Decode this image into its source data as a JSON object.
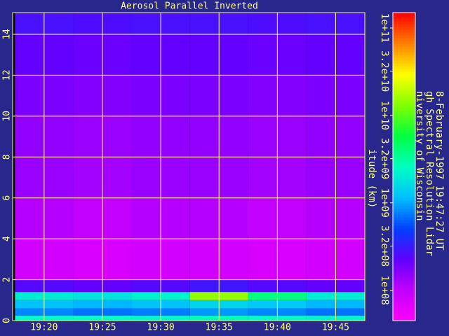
{
  "chart_data": {
    "type": "heatmap",
    "title": "Aerosol Parallel Inverted",
    "ylabel": "itude (km)",
    "annotations": [
      "niversity of Wisconsin",
      "gh Spectral Resolution Lidar",
      "8-February-1997 19:47:27 UT"
    ],
    "x_edges": [
      1157.5,
      1162.5,
      1167.5,
      1172.5,
      1177.5,
      1182.5,
      1187.5
    ],
    "y_edges": [
      0,
      0.25,
      0.6,
      1.0,
      1.4,
      2,
      4,
      6,
      8,
      10,
      12,
      14,
      15.06
    ],
    "values": [
      [
        2500000000.0,
        2600000000.0,
        2400000000.0,
        2800000000.0,
        2500000000.0,
        2300000000.0
      ],
      [
        800000000.0,
        700000000.0,
        750000000.0,
        900000000.0,
        800000000.0,
        700000000.0
      ],
      [
        1200000000.0,
        1100000000.0,
        1200000000.0,
        1500000000.0,
        1300000000.0,
        1100000000.0
      ],
      [
        2000000000.0,
        1800000000.0,
        2200000000.0,
        15000000000.0,
        4000000000.0,
        2000000000.0
      ],
      [
        250000000.0,
        220000000.0,
        250000000.0,
        300000000.0,
        250000000.0,
        220000000.0
      ],
      [
        80000000.0,
        75000000.0,
        80000000.0,
        80000000.0,
        75000000.0,
        80000000.0
      ],
      [
        110000000.0,
        100000000.0,
        110000000.0,
        110000000.0,
        100000000.0,
        110000000.0
      ],
      [
        140000000.0,
        130000000.0,
        140000000.0,
        140000000.0,
        130000000.0,
        140000000.0
      ],
      [
        150000000.0,
        140000000.0,
        150000000.0,
        150000000.0,
        140000000.0,
        150000000.0
      ],
      [
        180000000.0,
        170000000.0,
        180000000.0,
        180000000.0,
        170000000.0,
        180000000.0
      ],
      [
        220000000.0,
        210000000.0,
        220000000.0,
        220000000.0,
        210000000.0,
        220000000.0
      ],
      [
        280000000.0,
        270000000.0,
        280000000.0,
        280000000.0,
        270000000.0,
        280000000.0
      ]
    ],
    "xlim": [
      1157.3,
      1187.5
    ],
    "ylim": [
      0,
      15.06
    ],
    "xticks": [
      {
        "value": 1160,
        "label": "19:20"
      },
      {
        "value": 1165,
        "label": "19:25"
      },
      {
        "value": 1170,
        "label": "19:30"
      },
      {
        "value": 1175,
        "label": "19:35"
      },
      {
        "value": 1180,
        "label": "19:40"
      },
      {
        "value": 1185,
        "label": "19:45"
      }
    ],
    "yticks": [
      0,
      2,
      4,
      6,
      8,
      10,
      12,
      14
    ],
    "grid": true,
    "grid_color": "#ffff60",
    "colorbar": {
      "log": true,
      "lim": [
        45000000.0,
        150000000000.0
      ],
      "ticks": [
        {
          "value": 100000000000.0,
          "label": "1e+11"
        },
        {
          "value": 32000000000.0,
          "label": "3.2e+10"
        },
        {
          "value": 10000000000.0,
          "label": "1e+10"
        },
        {
          "value": 3200000000.0,
          "label": "3.2e+09"
        },
        {
          "value": 1000000000.0,
          "label": "1e+09"
        },
        {
          "value": 320000000.0,
          "label": "3.2e+08"
        },
        {
          "value": 100000000.0,
          "label": "1e+08"
        }
      ],
      "colormap": [
        "#ff00ff",
        "#c000ff",
        "#6000ff",
        "#0040ff",
        "#00c0ff",
        "#00ffc0",
        "#00ff40",
        "#80ff00",
        "#ffff00",
        "#ff8000",
        "#ff0000"
      ]
    }
  }
}
